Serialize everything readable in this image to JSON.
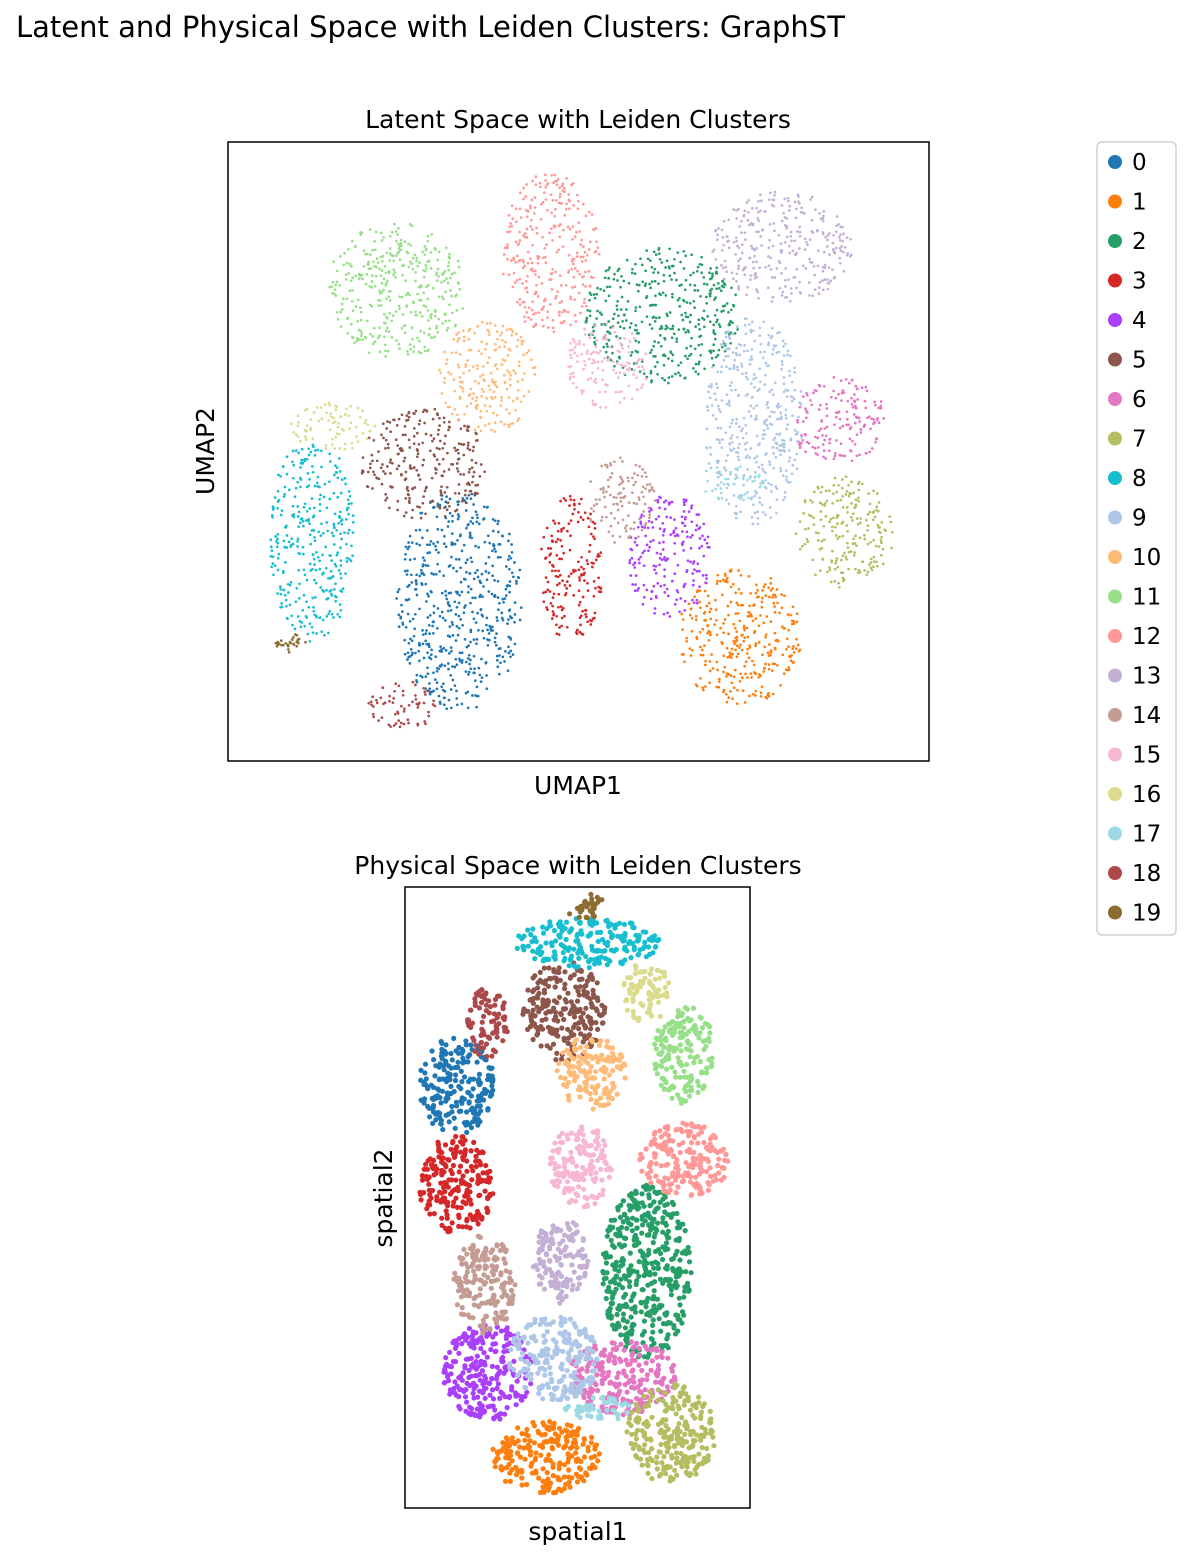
{
  "figure": {
    "suptitle": "Latent and Physical Space with Leiden Clusters: GraphST"
  },
  "legend": {
    "items": [
      {
        "label": "0",
        "color": "#1f77b4"
      },
      {
        "label": "1",
        "color": "#ff7f0e"
      },
      {
        "label": "2",
        "color": "#279e68"
      },
      {
        "label": "3",
        "color": "#d62728"
      },
      {
        "label": "4",
        "color": "#aa40fc"
      },
      {
        "label": "5",
        "color": "#8c564b"
      },
      {
        "label": "6",
        "color": "#e377c2"
      },
      {
        "label": "7",
        "color": "#b5bd61"
      },
      {
        "label": "8",
        "color": "#17becf"
      },
      {
        "label": "9",
        "color": "#aec7e8"
      },
      {
        "label": "10",
        "color": "#ffbb78"
      },
      {
        "label": "11",
        "color": "#98df8a"
      },
      {
        "label": "12",
        "color": "#ff9896"
      },
      {
        "label": "13",
        "color": "#c5b0d5"
      },
      {
        "label": "14",
        "color": "#c49c94"
      },
      {
        "label": "15",
        "color": "#f7b6d2"
      },
      {
        "label": "16",
        "color": "#dbdb8d"
      },
      {
        "label": "17",
        "color": "#9edae5"
      },
      {
        "label": "18",
        "color": "#ad494a"
      },
      {
        "label": "19",
        "color": "#8c6d31"
      }
    ]
  },
  "chart_data": [
    {
      "type": "scatter",
      "title": "Latent Space with Leiden Clusters",
      "xlabel": "UMAP1",
      "ylabel": "UMAP2",
      "xlim": [
        0,
        100
      ],
      "ylim": [
        0,
        100
      ],
      "grid": false,
      "legend_placement": "outside-right",
      "series": [
        {
          "name": "0",
          "cx": 33,
          "cy": 26,
          "rx": 9,
          "ry": 18
        },
        {
          "name": "1",
          "cx": 73,
          "cy": 20,
          "rx": 9,
          "ry": 11
        },
        {
          "name": "2",
          "cx": 62,
          "cy": 72,
          "rx": 11,
          "ry": 11
        },
        {
          "name": "3",
          "cx": 49,
          "cy": 31,
          "rx": 4.5,
          "ry": 12
        },
        {
          "name": "4",
          "cx": 63,
          "cy": 33,
          "rx": 6,
          "ry": 10
        },
        {
          "name": "5",
          "cx": 28,
          "cy": 48,
          "rx": 9,
          "ry": 9
        },
        {
          "name": "6",
          "cx": 87,
          "cy": 55,
          "rx": 7,
          "ry": 7
        },
        {
          "name": "7",
          "cx": 88,
          "cy": 37,
          "rx": 7,
          "ry": 9
        },
        {
          "name": "8",
          "cx": 12,
          "cy": 36,
          "rx": 6,
          "ry": 17
        },
        {
          "name": "9",
          "cx": 75,
          "cy": 55,
          "rx": 7,
          "ry": 17
        },
        {
          "name": "10",
          "cx": 37,
          "cy": 62,
          "rx": 7,
          "ry": 9
        },
        {
          "name": "11",
          "cx": 24,
          "cy": 76,
          "rx": 10,
          "ry": 11
        },
        {
          "name": "12",
          "cx": 46,
          "cy": 82,
          "rx": 7,
          "ry": 13
        },
        {
          "name": "13",
          "cx": 79,
          "cy": 83,
          "rx": 10,
          "ry": 9
        },
        {
          "name": "14",
          "cx": 56,
          "cy": 42,
          "rx": 5,
          "ry": 7
        },
        {
          "name": "15",
          "cx": 54,
          "cy": 64,
          "rx": 6,
          "ry": 7
        },
        {
          "name": "16",
          "cx": 15,
          "cy": 54,
          "rx": 6,
          "ry": 4
        },
        {
          "name": "17",
          "cx": 72,
          "cy": 45,
          "rx": 5,
          "ry": 3
        },
        {
          "name": "18",
          "cx": 25,
          "cy": 9,
          "rx": 5,
          "ry": 4
        },
        {
          "name": "19",
          "cx": 9,
          "cy": 19,
          "rx": 2.5,
          "ry": 1.5
        }
      ]
    },
    {
      "type": "scatter",
      "title": "Physical Space with Leiden Clusters",
      "xlabel": "spatial1",
      "ylabel": "spatial2",
      "xlim": [
        0,
        100
      ],
      "ylim": [
        0,
        100
      ],
      "grid": false,
      "legend_placement": "outside-right",
      "series": [
        {
          "name": "0",
          "cx": 15,
          "cy": 68,
          "rx": 11,
          "ry": 8
        },
        {
          "name": "1",
          "cx": 41,
          "cy": 8,
          "rx": 16,
          "ry": 6
        },
        {
          "name": "2",
          "cx": 70,
          "cy": 38,
          "rx": 13,
          "ry": 14
        },
        {
          "name": "3",
          "cx": 15,
          "cy": 52,
          "rx": 11,
          "ry": 8
        },
        {
          "name": "4",
          "cx": 24,
          "cy": 22,
          "rx": 13,
          "ry": 8
        },
        {
          "name": "5",
          "cx": 46,
          "cy": 80,
          "rx": 12,
          "ry": 8
        },
        {
          "name": "6",
          "cx": 63,
          "cy": 21,
          "rx": 16,
          "ry": 6
        },
        {
          "name": "7",
          "cx": 77,
          "cy": 12,
          "rx": 13,
          "ry": 8
        },
        {
          "name": "8",
          "cx": 53,
          "cy": 91,
          "rx": 21,
          "ry": 4
        },
        {
          "name": "9",
          "cx": 43,
          "cy": 24,
          "rx": 13,
          "ry": 7
        },
        {
          "name": "10",
          "cx": 54,
          "cy": 70,
          "rx": 10,
          "ry": 6
        },
        {
          "name": "11",
          "cx": 81,
          "cy": 73,
          "rx": 9,
          "ry": 8
        },
        {
          "name": "12",
          "cx": 81,
          "cy": 56,
          "rx": 13,
          "ry": 6
        },
        {
          "name": "13",
          "cx": 45,
          "cy": 40,
          "rx": 8,
          "ry": 7
        },
        {
          "name": "14",
          "cx": 23,
          "cy": 36,
          "rx": 9,
          "ry": 8
        },
        {
          "name": "15",
          "cx": 51,
          "cy": 55,
          "rx": 9,
          "ry": 7
        },
        {
          "name": "16",
          "cx": 70,
          "cy": 83,
          "rx": 7,
          "ry": 5
        },
        {
          "name": "17",
          "cx": 56,
          "cy": 16,
          "rx": 10,
          "ry": 2
        },
        {
          "name": "18",
          "cx": 24,
          "cy": 78,
          "rx": 6,
          "ry": 6
        },
        {
          "name": "19",
          "cx": 52,
          "cy": 97,
          "rx": 6,
          "ry": 2
        }
      ]
    }
  ]
}
